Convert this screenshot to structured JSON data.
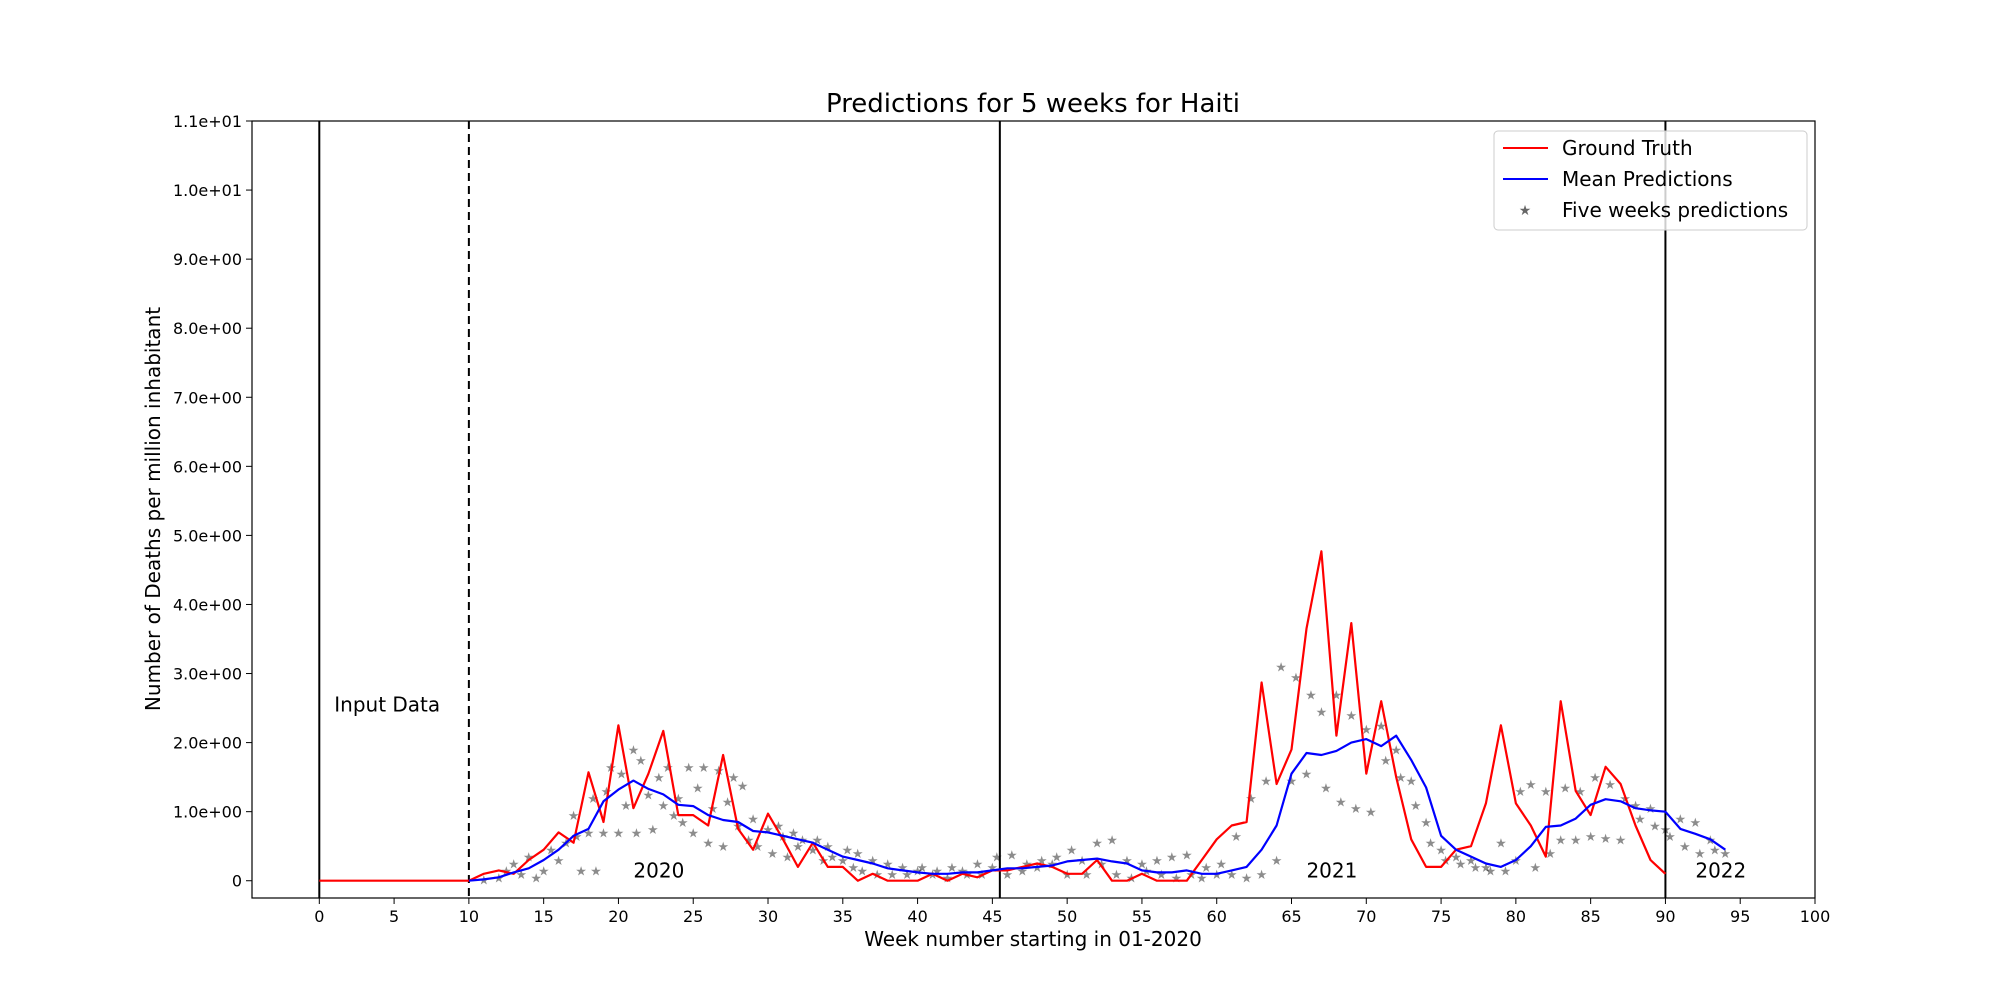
{
  "chart_data": {
    "type": "line",
    "title": "Predictions for 5 weeks for Haiti",
    "xlabel": "Week number starting in 01-2020",
    "ylabel": "Number of Deaths per million inhabitant",
    "xlim": [
      -4.5,
      100
    ],
    "ylim": [
      -0.25,
      11
    ],
    "x_ticks": [
      0,
      5,
      10,
      15,
      20,
      25,
      30,
      35,
      40,
      45,
      50,
      55,
      60,
      65,
      70,
      75,
      80,
      85,
      90,
      95,
      100
    ],
    "y_ticks": [
      0,
      1,
      2,
      3,
      4,
      5,
      6,
      7,
      8,
      9,
      10,
      11
    ],
    "y_tick_labels": [
      "0",
      "1.0e+00",
      "2.0e+00",
      "3.0e+00",
      "4.0e+00",
      "5.0e+00",
      "6.0e+00",
      "7.0e+00",
      "8.0e+00",
      "9.0e+00",
      "1.0e+01",
      "1.1e+01"
    ],
    "grid": false,
    "legend_position": "top-right",
    "legend": [
      "Ground Truth",
      "Mean Predictions",
      "Five weeks predictions"
    ],
    "vertical_lines": [
      {
        "x": 0,
        "style": "solid"
      },
      {
        "x": 10,
        "style": "dashed"
      },
      {
        "x": 45.5,
        "style": "solid"
      },
      {
        "x": 90,
        "style": "solid"
      }
    ],
    "annotations": [
      {
        "text": "Input Data",
        "x": 1,
        "y": 2.45
      },
      {
        "text": "2020",
        "x": 21,
        "y": 0.05
      },
      {
        "text": "2021",
        "x": 66,
        "y": 0.05
      },
      {
        "text": "2022",
        "x": 92,
        "y": 0.05
      }
    ],
    "colors": {
      "ground_truth": "#ff0000",
      "mean": "#0000ff",
      "axis": "#000000"
    },
    "prediction_colors": [
      "#1f77b4",
      "#ff7f0e",
      "#2ca02c",
      "#d62728",
      "#9467bd",
      "#8c564b",
      "#e377c2",
      "#bcbd22",
      "#17becf"
    ],
    "series": [
      {
        "name": "Ground Truth",
        "x": [
          0,
          1,
          2,
          3,
          4,
          5,
          6,
          7,
          8,
          9,
          10,
          11,
          12,
          13,
          14,
          15,
          16,
          17,
          18,
          19,
          20,
          21,
          22,
          23,
          24,
          25,
          26,
          27,
          28,
          29,
          30,
          31,
          32,
          33,
          34,
          35,
          36,
          37,
          38,
          39,
          40,
          41,
          42,
          43,
          44,
          45,
          46,
          47,
          48,
          49,
          50,
          51,
          52,
          53,
          54,
          55,
          56,
          57,
          58,
          59,
          60,
          61,
          62,
          63,
          64,
          65,
          66,
          67,
          68,
          69,
          70,
          71,
          72,
          73,
          74,
          75,
          76,
          77,
          78,
          79,
          80,
          81,
          82,
          83,
          84,
          85,
          86,
          87,
          88,
          89,
          90
        ],
        "values": [
          0,
          0,
          0,
          0,
          0,
          0,
          0,
          0,
          0,
          0,
          0,
          0.1,
          0.15,
          0.1,
          0.3,
          0.45,
          0.7,
          0.55,
          1.57,
          0.85,
          2.25,
          1.05,
          1.55,
          2.17,
          0.95,
          0.95,
          0.8,
          1.82,
          0.75,
          0.45,
          0.97,
          0.6,
          0.2,
          0.55,
          0.2,
          0.2,
          0,
          0.1,
          0,
          0,
          0,
          0.1,
          0,
          0.1,
          0.05,
          0.15,
          0.15,
          0.2,
          0.25,
          0.2,
          0.1,
          0.1,
          0.3,
          0,
          0,
          0.1,
          0,
          0,
          0,
          0.3,
          0.6,
          0.8,
          0.85,
          2.87,
          1.4,
          1.9,
          3.65,
          4.77,
          2.1,
          3.73,
          1.55,
          2.6,
          1.5,
          0.6,
          0.2,
          0.2,
          0.45,
          0.5,
          1.12,
          2.25,
          1.12,
          0.8,
          0.35,
          2.6,
          1.3,
          0.95,
          1.65,
          1.4,
          0.8,
          0.3,
          0.1
        ]
      },
      {
        "name": "Mean Predictions",
        "x": [
          10,
          11,
          12,
          13,
          14,
          15,
          16,
          17,
          18,
          19,
          20,
          21,
          22,
          23,
          24,
          25,
          26,
          27,
          28,
          29,
          30,
          31,
          32,
          33,
          34,
          35,
          36,
          37,
          38,
          39,
          40,
          41,
          42,
          43,
          44,
          45,
          46,
          47,
          48,
          49,
          50,
          51,
          52,
          53,
          54,
          55,
          56,
          57,
          58,
          59,
          60,
          61,
          62,
          63,
          64,
          65,
          66,
          67,
          68,
          69,
          70,
          71,
          72,
          73,
          74,
          75,
          76,
          77,
          78,
          79,
          80,
          81,
          82,
          83,
          84,
          85,
          86,
          87,
          88,
          89,
          90,
          91,
          92,
          93,
          94
        ],
        "values": [
          0,
          0.02,
          0.05,
          0.12,
          0.18,
          0.3,
          0.45,
          0.65,
          0.75,
          1.15,
          1.32,
          1.45,
          1.33,
          1.25,
          1.1,
          1.08,
          0.95,
          0.88,
          0.85,
          0.72,
          0.7,
          0.65,
          0.6,
          0.55,
          0.45,
          0.35,
          0.3,
          0.25,
          0.18,
          0.15,
          0.12,
          0.1,
          0.1,
          0.12,
          0.12,
          0.15,
          0.18,
          0.18,
          0.2,
          0.22,
          0.28,
          0.3,
          0.32,
          0.28,
          0.25,
          0.15,
          0.12,
          0.12,
          0.15,
          0.1,
          0.1,
          0.15,
          0.2,
          0.45,
          0.8,
          1.55,
          1.85,
          1.82,
          1.88,
          2.0,
          2.05,
          1.95,
          2.1,
          1.75,
          1.35,
          0.65,
          0.45,
          0.35,
          0.25,
          0.2,
          0.3,
          0.5,
          0.78,
          0.8,
          0.9,
          1.1,
          1.18,
          1.15,
          1.05,
          1.02,
          1.0,
          0.75,
          0.68,
          0.6,
          0.45
        ]
      },
      {
        "name": "Five weeks predictions",
        "points": [
          [
            11,
            0.02
          ],
          [
            12,
            0.05
          ],
          [
            12.5,
            0.15
          ],
          [
            13,
            0.25
          ],
          [
            13.5,
            0.1
          ],
          [
            14,
            0.35
          ],
          [
            14.5,
            0.05
          ],
          [
            15,
            0.15
          ],
          [
            15.5,
            0.45
          ],
          [
            16,
            0.3
          ],
          [
            16.5,
            0.55
          ],
          [
            17,
            0.95
          ],
          [
            17.2,
            0.65
          ],
          [
            17.5,
            0.15
          ],
          [
            18,
            0.7
          ],
          [
            18.3,
            1.2
          ],
          [
            18.5,
            0.15
          ],
          [
            19,
            0.7
          ],
          [
            19.2,
            1.3
          ],
          [
            19.5,
            1.65
          ],
          [
            20,
            0.7
          ],
          [
            20.2,
            1.55
          ],
          [
            20.5,
            1.1
          ],
          [
            21,
            1.9
          ],
          [
            21.2,
            0.7
          ],
          [
            21.5,
            1.75
          ],
          [
            22,
            1.25
          ],
          [
            22.3,
            0.75
          ],
          [
            22.7,
            1.5
          ],
          [
            23,
            1.1
          ],
          [
            23.3,
            1.65
          ],
          [
            23.7,
            0.95
          ],
          [
            24,
            1.2
          ],
          [
            24.3,
            0.85
          ],
          [
            24.7,
            1.65
          ],
          [
            25,
            0.7
          ],
          [
            25.3,
            1.35
          ],
          [
            25.7,
            1.65
          ],
          [
            26,
            0.55
          ],
          [
            26.3,
            1.05
          ],
          [
            26.7,
            1.6
          ],
          [
            27,
            0.5
          ],
          [
            27.3,
            1.15
          ],
          [
            27.7,
            1.5
          ],
          [
            28,
            0.8
          ],
          [
            28.3,
            1.38
          ],
          [
            28.7,
            0.6
          ],
          [
            29,
            0.9
          ],
          [
            29.3,
            0.5
          ],
          [
            30,
            0.75
          ],
          [
            30.3,
            0.4
          ],
          [
            30.7,
            0.8
          ],
          [
            31,
            0.65
          ],
          [
            31.3,
            0.35
          ],
          [
            31.7,
            0.7
          ],
          [
            32,
            0.5
          ],
          [
            32.3,
            0.6
          ],
          [
            33,
            0.45
          ],
          [
            33.3,
            0.6
          ],
          [
            33.7,
            0.3
          ],
          [
            34,
            0.5
          ],
          [
            34.3,
            0.35
          ],
          [
            35,
            0.3
          ],
          [
            35.3,
            0.45
          ],
          [
            35.7,
            0.2
          ],
          [
            36,
            0.4
          ],
          [
            36.3,
            0.15
          ],
          [
            37,
            0.3
          ],
          [
            37.3,
            0.1
          ],
          [
            38,
            0.25
          ],
          [
            38.3,
            0.1
          ],
          [
            39,
            0.2
          ],
          [
            39.3,
            0.1
          ],
          [
            40,
            0.15
          ],
          [
            40.3,
            0.2
          ],
          [
            41,
            0.1
          ],
          [
            41.3,
            0.15
          ],
          [
            42,
            0.05
          ],
          [
            42.3,
            0.2
          ],
          [
            43,
            0.15
          ],
          [
            43.3,
            0.1
          ],
          [
            44,
            0.25
          ],
          [
            44.3,
            0.1
          ],
          [
            45,
            0.2
          ],
          [
            45.3,
            0.35
          ],
          [
            46,
            0.1
          ],
          [
            46.3,
            0.38
          ],
          [
            47,
            0.15
          ],
          [
            47.3,
            0.25
          ],
          [
            48,
            0.2
          ],
          [
            48.3,
            0.3
          ],
          [
            49,
            0.25
          ],
          [
            49.3,
            0.35
          ],
          [
            50,
            0.1
          ],
          [
            50.3,
            0.45
          ],
          [
            51,
            0.3
          ],
          [
            51.3,
            0.1
          ],
          [
            52,
            0.55
          ],
          [
            52.3,
            0.25
          ],
          [
            53,
            0.6
          ],
          [
            53.3,
            0.1
          ],
          [
            54,
            0.3
          ],
          [
            54.3,
            0.05
          ],
          [
            55,
            0.25
          ],
          [
            55.3,
            0.15
          ],
          [
            56,
            0.3
          ],
          [
            56.3,
            0.1
          ],
          [
            57,
            0.35
          ],
          [
            57.3,
            0.05
          ],
          [
            58,
            0.38
          ],
          [
            58.3,
            0.1
          ],
          [
            59,
            0.05
          ],
          [
            59.3,
            0.2
          ],
          [
            60,
            0.1
          ],
          [
            60.3,
            0.25
          ],
          [
            61,
            0.1
          ],
          [
            61.3,
            0.65
          ],
          [
            62,
            0.05
          ],
          [
            62.3,
            1.2
          ],
          [
            63,
            0.1
          ],
          [
            63.3,
            1.45
          ],
          [
            64,
            0.3
          ],
          [
            64.3,
            3.1
          ],
          [
            65,
            1.45
          ],
          [
            65.3,
            2.95
          ],
          [
            66,
            1.55
          ],
          [
            66.3,
            2.7
          ],
          [
            67,
            2.45
          ],
          [
            67.3,
            1.35
          ],
          [
            68,
            2.7
          ],
          [
            68.3,
            1.15
          ],
          [
            69,
            2.4
          ],
          [
            69.3,
            1.05
          ],
          [
            70,
            2.2
          ],
          [
            70.3,
            1.0
          ],
          [
            71,
            2.25
          ],
          [
            71.3,
            1.75
          ],
          [
            72,
            1.9
          ],
          [
            72.3,
            1.5
          ],
          [
            73,
            1.45
          ],
          [
            73.3,
            1.1
          ],
          [
            74,
            0.85
          ],
          [
            74.3,
            0.55
          ],
          [
            75,
            0.45
          ],
          [
            75.3,
            0.3
          ],
          [
            76,
            0.35
          ],
          [
            76.3,
            0.25
          ],
          [
            77,
            0.3
          ],
          [
            77.3,
            0.2
          ],
          [
            78,
            0.2
          ],
          [
            78.3,
            0.15
          ],
          [
            79,
            0.55
          ],
          [
            79.3,
            0.15
          ],
          [
            80,
            0.3
          ],
          [
            80.3,
            1.3
          ],
          [
            81,
            1.4
          ],
          [
            81.3,
            0.2
          ],
          [
            82,
            1.3
          ],
          [
            82.3,
            0.4
          ],
          [
            83,
            0.6
          ],
          [
            83.3,
            1.35
          ],
          [
            84,
            0.6
          ],
          [
            84.3,
            1.3
          ],
          [
            85,
            0.65
          ],
          [
            85.3,
            1.5
          ],
          [
            86,
            0.62
          ],
          [
            86.3,
            1.4
          ],
          [
            87,
            0.6
          ],
          [
            87.3,
            1.2
          ],
          [
            88,
            1.1
          ],
          [
            88.3,
            0.9
          ],
          [
            89,
            1.05
          ],
          [
            89.3,
            0.8
          ],
          [
            90,
            0.75
          ],
          [
            90.3,
            0.65
          ],
          [
            91,
            0.9
          ],
          [
            91.3,
            0.5
          ],
          [
            92,
            0.85
          ],
          [
            92.3,
            0.4
          ],
          [
            93,
            0.6
          ],
          [
            93.3,
            0.45
          ],
          [
            94,
            0.4
          ]
        ]
      }
    ]
  }
}
